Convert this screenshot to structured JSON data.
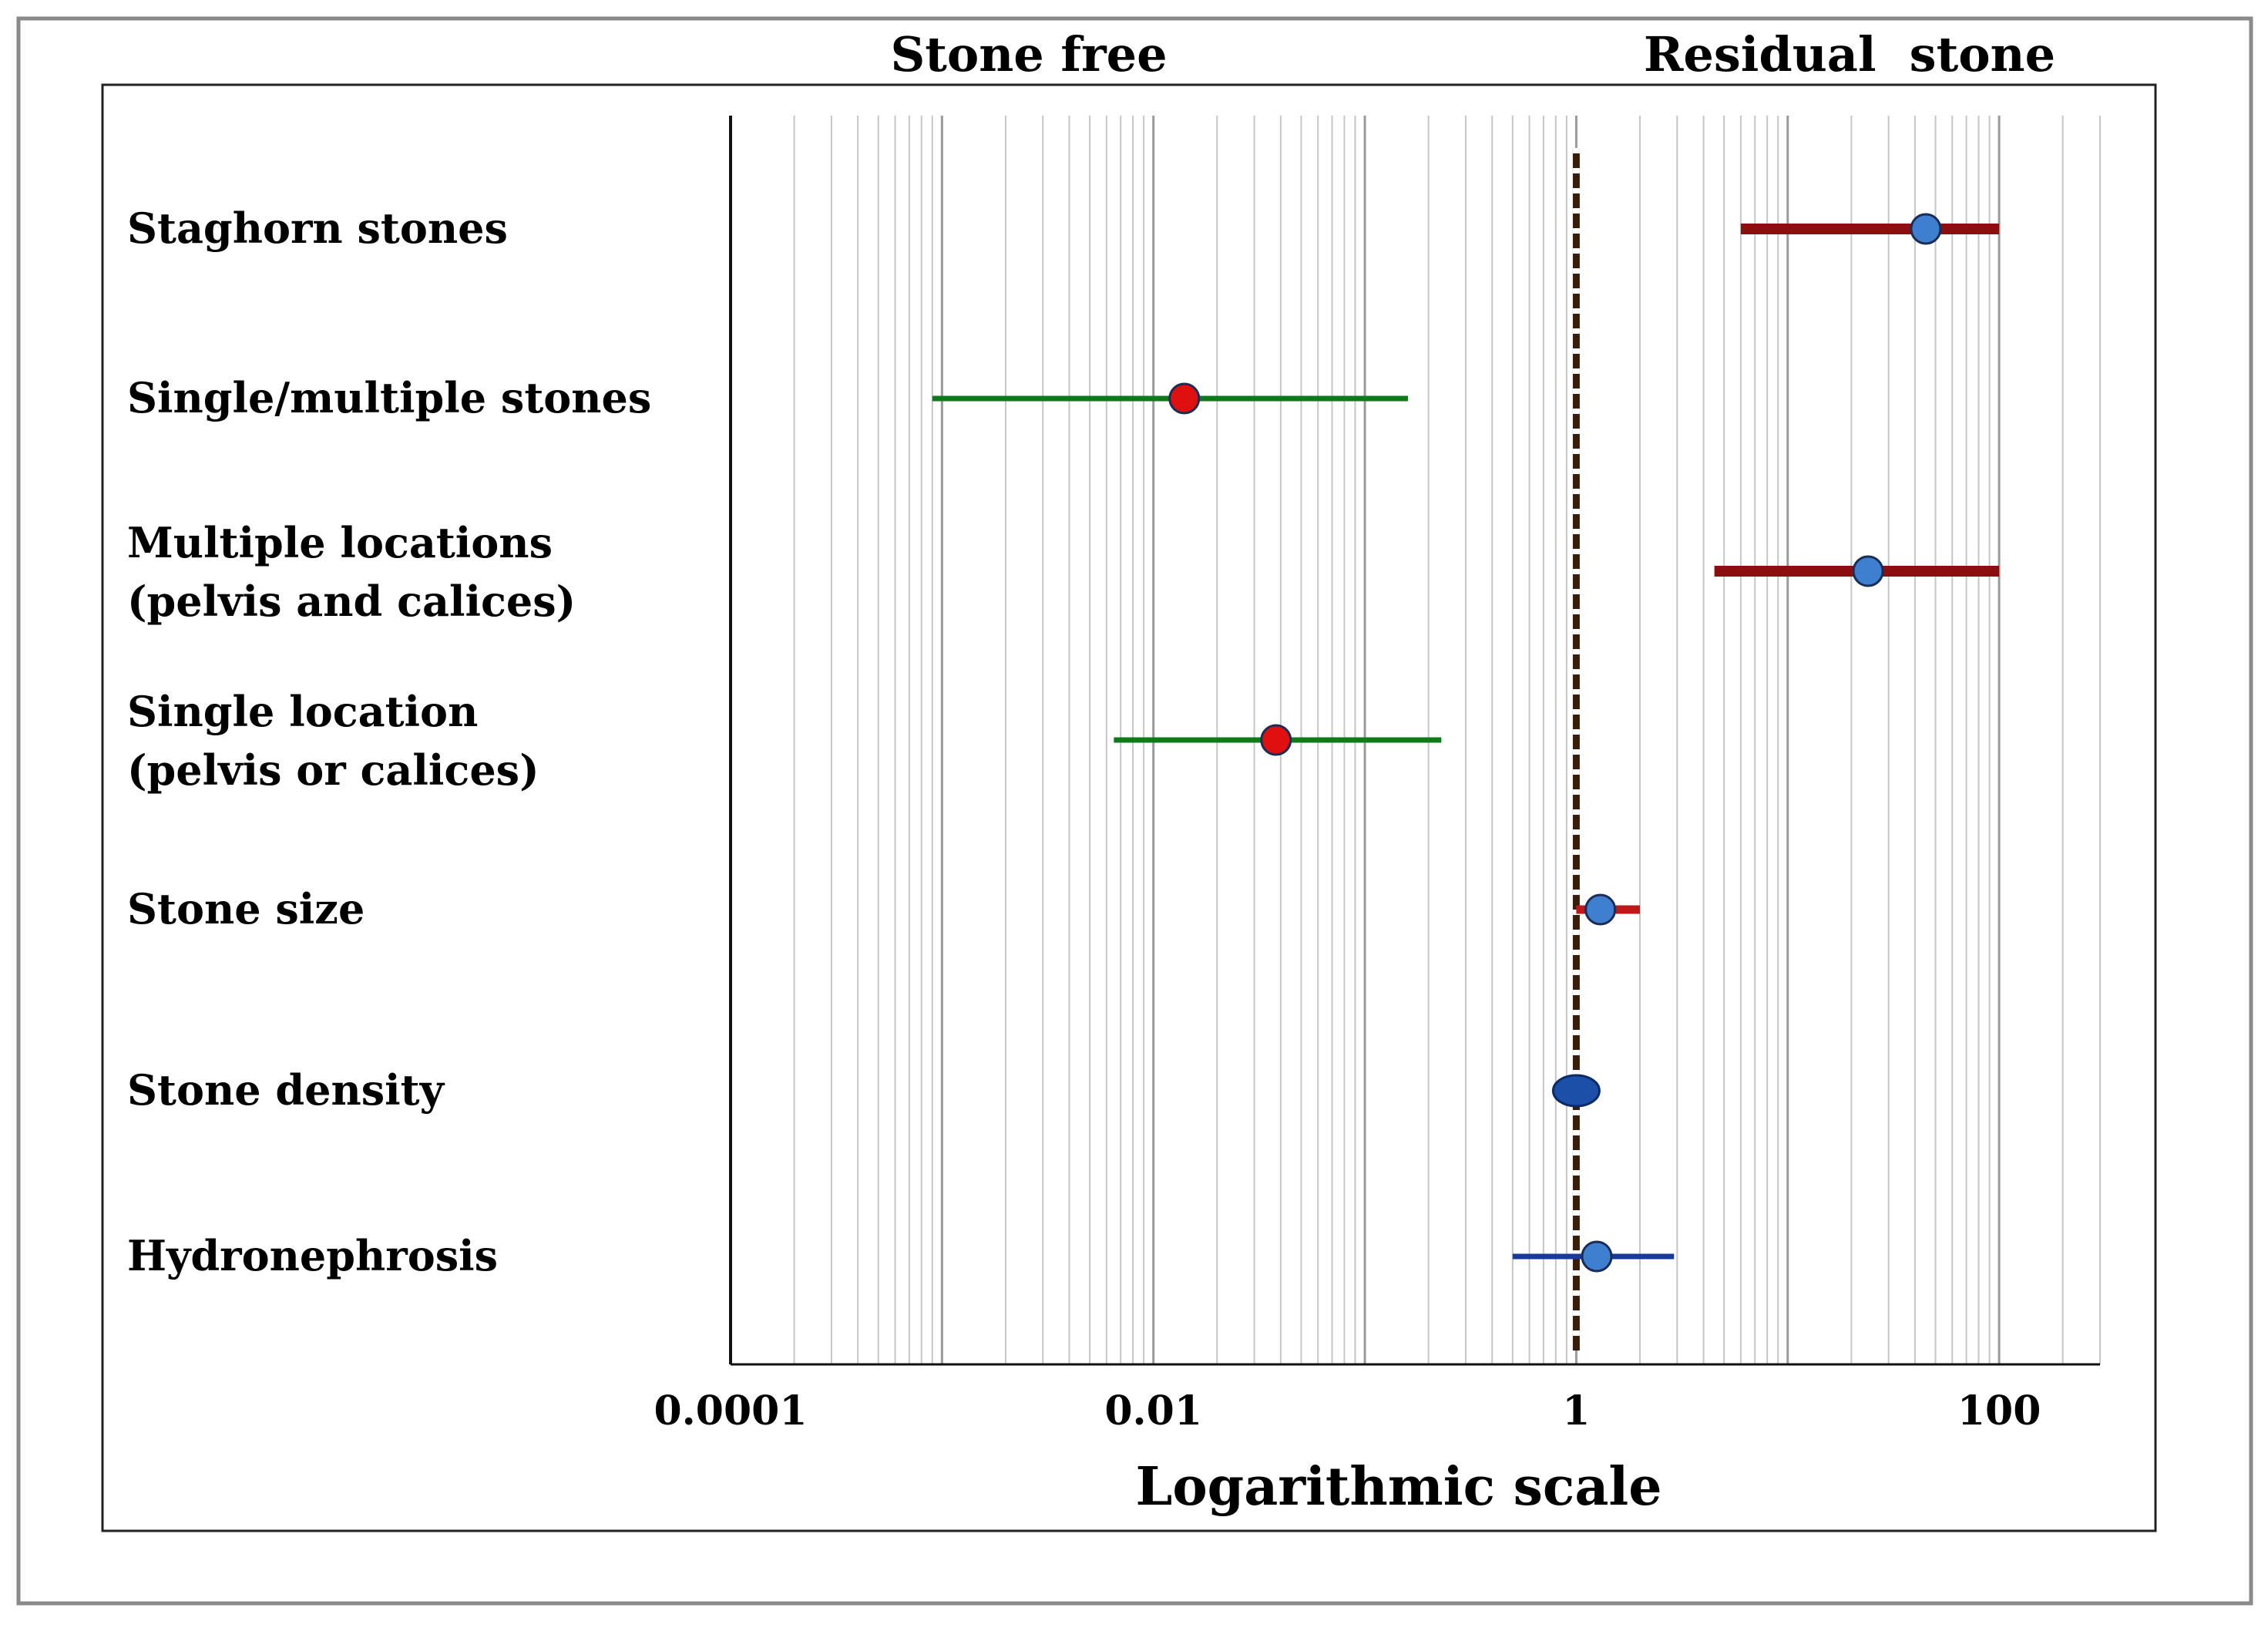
{
  "chart_data": {
    "type": "forest",
    "title": "",
    "header_left": "Stone free",
    "header_right": "Residual  stone",
    "xlabel": "Logarithmic scale",
    "xscale": "log",
    "xlim": [
      0.0001,
      300
    ],
    "xticks": [
      {
        "value": 0.0001,
        "label": "0.0001"
      },
      {
        "value": 0.01,
        "label": "0.01"
      },
      {
        "value": 1,
        "label": "1"
      },
      {
        "value": 100,
        "label": "100"
      }
    ],
    "reference_line": 1,
    "grid": true,
    "rows": [
      {
        "label": [
          "Staghorn stones"
        ],
        "estimate": 45,
        "ci_low": 6,
        "ci_high": 100,
        "point_color": "#3f7fd0",
        "bar_color": "#8b0f0f"
      },
      {
        "label": [
          "Single/multiple stones"
        ],
        "estimate": 0.014,
        "ci_low": 0.0009,
        "ci_high": 0.16,
        "point_color": "#e01010",
        "bar_color": "#0f7a1a"
      },
      {
        "label": [
          "Multiple locations",
          "(pelvis and calices)"
        ],
        "estimate": 24,
        "ci_low": 4.5,
        "ci_high": 100,
        "point_color": "#3f7fd0",
        "bar_color": "#8b0f0f"
      },
      {
        "label": [
          "Single location",
          "(pelvis or calices)"
        ],
        "estimate": 0.038,
        "ci_low": 0.0065,
        "ci_high": 0.23,
        "point_color": "#e01010",
        "bar_color": "#0f7a1a"
      },
      {
        "label": [
          "Stone size"
        ],
        "estimate": 1.3,
        "ci_low": 1.0,
        "ci_high": 2.0,
        "point_color": "#3f7fd0",
        "bar_color": "#c01818"
      },
      {
        "label": [
          "Stone density"
        ],
        "estimate": 1.0,
        "ci_low": 0.9,
        "ci_high": 1.1,
        "point_color": "#1c4fa8",
        "bar_color": "#1c4fa8"
      },
      {
        "label": [
          "Hydronephrosis"
        ],
        "estimate": 1.25,
        "ci_low": 0.5,
        "ci_high": 2.9,
        "point_color": "#3f7fd0",
        "bar_color": "#1a3a9a"
      }
    ]
  }
}
